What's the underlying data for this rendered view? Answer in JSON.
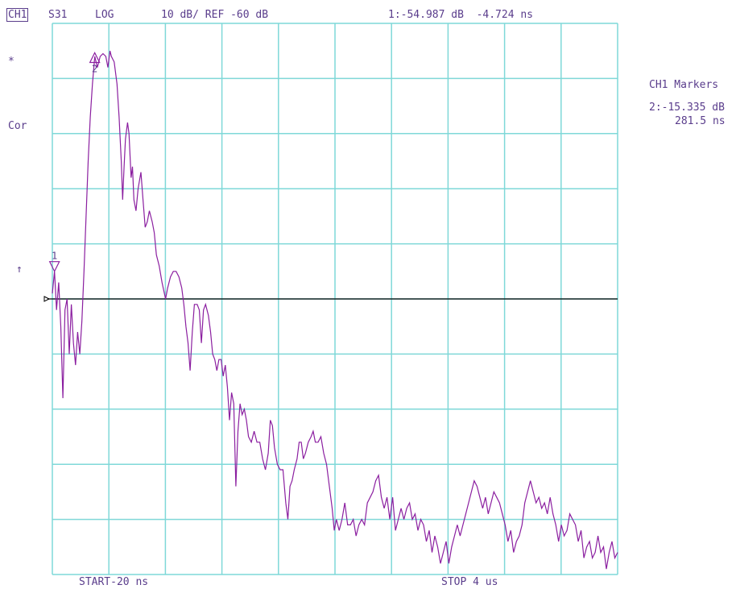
{
  "header": {
    "channel": "CH1",
    "parameter": "S31",
    "format": "LOG",
    "scale_ref": "10 dB/ REF -60 dB",
    "marker1_readout": "1:-54.987 dB  -4.724 ns"
  },
  "left_annotations": {
    "star": "*",
    "correction": "Cor",
    "ref_arrow": "↑"
  },
  "marker_panel": {
    "title": "CH1 Markers",
    "marker2_value": "2:-15.335 dB",
    "marker2_time": "281.5 ns"
  },
  "footer": {
    "start": "START-20 ns",
    "stop": "STOP 4 us"
  },
  "colors": {
    "grid": "#7fd8d8",
    "trace": "#8b1fa0",
    "text": "#5a3d8c",
    "reference_line": "#000000"
  },
  "chart_data": {
    "type": "line",
    "x_unit": "ns",
    "y_unit": "dB",
    "x_range": [
      -20,
      4000
    ],
    "y_range": [
      -110,
      -10
    ],
    "reference_level": -60,
    "grid": true,
    "markers": [
      {
        "id": "1",
        "x": -4.724,
        "y": -54.987
      },
      {
        "id": "2",
        "x": 281.5,
        "y": -15.335
      }
    ],
    "series": [
      {
        "values": [
          [
            -20,
            -59
          ],
          [
            -4.7,
            -55
          ],
          [
            10,
            -62
          ],
          [
            25,
            -57
          ],
          [
            40,
            -65
          ],
          [
            55,
            -78
          ],
          [
            70,
            -62
          ],
          [
            85,
            -60
          ],
          [
            100,
            -70
          ],
          [
            115,
            -61
          ],
          [
            130,
            -68
          ],
          [
            145,
            -72
          ],
          [
            160,
            -66
          ],
          [
            175,
            -70
          ],
          [
            190,
            -64
          ],
          [
            205,
            -55
          ],
          [
            220,
            -45
          ],
          [
            235,
            -35
          ],
          [
            250,
            -27
          ],
          [
            265,
            -21
          ],
          [
            281.5,
            -16
          ],
          [
            300,
            -18
          ],
          [
            320,
            -16
          ],
          [
            340,
            -15.5
          ],
          [
            360,
            -16
          ],
          [
            375,
            -18
          ],
          [
            390,
            -15
          ],
          [
            400,
            -16
          ],
          [
            420,
            -17
          ],
          [
            440,
            -21
          ],
          [
            455,
            -27
          ],
          [
            470,
            -35
          ],
          [
            480,
            -42
          ],
          [
            490,
            -36
          ],
          [
            500,
            -31
          ],
          [
            515,
            -28
          ],
          [
            525,
            -30
          ],
          [
            540,
            -38
          ],
          [
            550,
            -36
          ],
          [
            560,
            -42
          ],
          [
            575,
            -44
          ],
          [
            590,
            -40
          ],
          [
            610,
            -37
          ],
          [
            625,
            -42
          ],
          [
            640,
            -47
          ],
          [
            655,
            -46
          ],
          [
            670,
            -44
          ],
          [
            690,
            -46
          ],
          [
            705,
            -48
          ],
          [
            720,
            -52
          ],
          [
            740,
            -54
          ],
          [
            760,
            -57
          ],
          [
            785,
            -60
          ],
          [
            800,
            -58
          ],
          [
            820,
            -56
          ],
          [
            840,
            -55
          ],
          [
            860,
            -55
          ],
          [
            880,
            -56
          ],
          [
            900,
            -58
          ],
          [
            915,
            -61
          ],
          [
            930,
            -65
          ],
          [
            945,
            -68
          ],
          [
            960,
            -73
          ],
          [
            975,
            -66
          ],
          [
            990,
            -61
          ],
          [
            1010,
            -61
          ],
          [
            1025,
            -62
          ],
          [
            1040,
            -68
          ],
          [
            1055,
            -62
          ],
          [
            1070,
            -61
          ],
          [
            1090,
            -63
          ],
          [
            1105,
            -66
          ],
          [
            1120,
            -70
          ],
          [
            1135,
            -71
          ],
          [
            1150,
            -73
          ],
          [
            1165,
            -71
          ],
          [
            1180,
            -71
          ],
          [
            1195,
            -74
          ],
          [
            1210,
            -72
          ],
          [
            1225,
            -76
          ],
          [
            1240,
            -82
          ],
          [
            1255,
            -77
          ],
          [
            1270,
            -79
          ],
          [
            1285,
            -94
          ],
          [
            1300,
            -84
          ],
          [
            1315,
            -79
          ],
          [
            1330,
            -81
          ],
          [
            1345,
            -80
          ],
          [
            1360,
            -82
          ],
          [
            1375,
            -85
          ],
          [
            1395,
            -86
          ],
          [
            1415,
            -84
          ],
          [
            1435,
            -86
          ],
          [
            1455,
            -86
          ],
          [
            1475,
            -89
          ],
          [
            1495,
            -91
          ],
          [
            1515,
            -88
          ],
          [
            1530,
            -82
          ],
          [
            1545,
            -83
          ],
          [
            1560,
            -87
          ],
          [
            1580,
            -90
          ],
          [
            1600,
            -91
          ],
          [
            1620,
            -91
          ],
          [
            1640,
            -97
          ],
          [
            1655,
            -100
          ],
          [
            1670,
            -94
          ],
          [
            1685,
            -93
          ],
          [
            1700,
            -91
          ],
          [
            1720,
            -89
          ],
          [
            1735,
            -86
          ],
          [
            1750,
            -86
          ],
          [
            1765,
            -89
          ],
          [
            1780,
            -88
          ],
          [
            1800,
            -86
          ],
          [
            1820,
            -85
          ],
          [
            1835,
            -84
          ],
          [
            1850,
            -86
          ],
          [
            1870,
            -86
          ],
          [
            1890,
            -85
          ],
          [
            1910,
            -88
          ],
          [
            1930,
            -90
          ],
          [
            1950,
            -94
          ],
          [
            1970,
            -98
          ],
          [
            1985,
            -102
          ],
          [
            2000,
            -100
          ],
          [
            2020,
            -102
          ],
          [
            2040,
            -100
          ],
          [
            2060,
            -97
          ],
          [
            2080,
            -101
          ],
          [
            2100,
            -101
          ],
          [
            2120,
            -100
          ],
          [
            2140,
            -103
          ],
          [
            2160,
            -101
          ],
          [
            2180,
            -100
          ],
          [
            2200,
            -101
          ],
          [
            2220,
            -97
          ],
          [
            2240,
            -96
          ],
          [
            2260,
            -95
          ],
          [
            2280,
            -93
          ],
          [
            2300,
            -92
          ],
          [
            2320,
            -96
          ],
          [
            2340,
            -98
          ],
          [
            2360,
            -96
          ],
          [
            2380,
            -100
          ],
          [
            2400,
            -96
          ],
          [
            2420,
            -102
          ],
          [
            2440,
            -100
          ],
          [
            2460,
            -98
          ],
          [
            2480,
            -100
          ],
          [
            2500,
            -98
          ],
          [
            2520,
            -97
          ],
          [
            2540,
            -100
          ],
          [
            2560,
            -99
          ],
          [
            2580,
            -102
          ],
          [
            2600,
            -100
          ],
          [
            2620,
            -101
          ],
          [
            2640,
            -104
          ],
          [
            2660,
            -102
          ],
          [
            2680,
            -106
          ],
          [
            2700,
            -103
          ],
          [
            2720,
            -105
          ],
          [
            2740,
            -108
          ],
          [
            2760,
            -106
          ],
          [
            2780,
            -104
          ],
          [
            2800,
            -108
          ],
          [
            2820,
            -105
          ],
          [
            2840,
            -103
          ],
          [
            2860,
            -101
          ],
          [
            2880,
            -103
          ],
          [
            2900,
            -101
          ],
          [
            2920,
            -99
          ],
          [
            2940,
            -97
          ],
          [
            2960,
            -95
          ],
          [
            2980,
            -93
          ],
          [
            3000,
            -94
          ],
          [
            3020,
            -96
          ],
          [
            3040,
            -98
          ],
          [
            3060,
            -96
          ],
          [
            3080,
            -99
          ],
          [
            3100,
            -97
          ],
          [
            3120,
            -95
          ],
          [
            3140,
            -96
          ],
          [
            3160,
            -97
          ],
          [
            3180,
            -99
          ],
          [
            3200,
            -101
          ],
          [
            3220,
            -104
          ],
          [
            3240,
            -102
          ],
          [
            3260,
            -106
          ],
          [
            3280,
            -104
          ],
          [
            3300,
            -103
          ],
          [
            3320,
            -101
          ],
          [
            3340,
            -97
          ],
          [
            3360,
            -95
          ],
          [
            3380,
            -93
          ],
          [
            3400,
            -95
          ],
          [
            3420,
            -97
          ],
          [
            3440,
            -96
          ],
          [
            3460,
            -98
          ],
          [
            3480,
            -97
          ],
          [
            3500,
            -99
          ],
          [
            3520,
            -96
          ],
          [
            3540,
            -99
          ],
          [
            3560,
            -101
          ],
          [
            3580,
            -104
          ],
          [
            3600,
            -101
          ],
          [
            3620,
            -103
          ],
          [
            3640,
            -102
          ],
          [
            3660,
            -99
          ],
          [
            3680,
            -100
          ],
          [
            3700,
            -101
          ],
          [
            3720,
            -104
          ],
          [
            3740,
            -102
          ],
          [
            3760,
            -107
          ],
          [
            3780,
            -105
          ],
          [
            3800,
            -104
          ],
          [
            3820,
            -107
          ],
          [
            3840,
            -106
          ],
          [
            3860,
            -103
          ],
          [
            3880,
            -106
          ],
          [
            3900,
            -105
          ],
          [
            3920,
            -109
          ],
          [
            3940,
            -106
          ],
          [
            3960,
            -104
          ],
          [
            3980,
            -107
          ],
          [
            4000,
            -106
          ]
        ]
      }
    ]
  }
}
